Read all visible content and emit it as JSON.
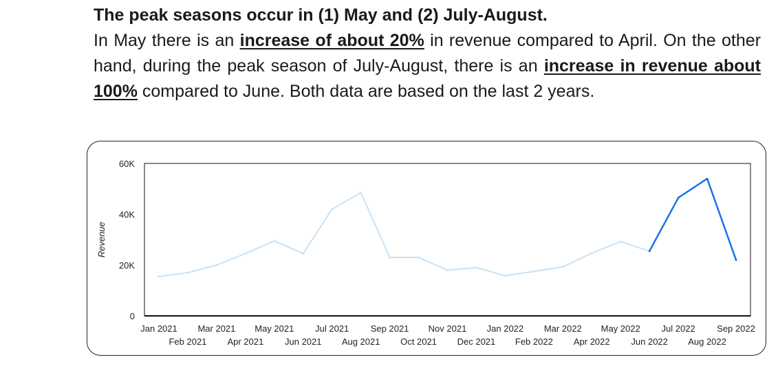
{
  "insight": {
    "headline": "The peak seasons occur in (1) May and (2) July-August.",
    "p1_a": "In May there is an ",
    "p1_b": "increase of about 20%",
    "p1_c": " in revenue compared to April. On the other hand, during the peak season of July-August, there is an ",
    "p1_d": "increase in revenue about 100%",
    "p1_e": " compared to June. Both data are based on the last 2 years."
  },
  "chart_data": {
    "type": "line",
    "x": [
      "Jan 2021",
      "Feb 2021",
      "Mar 2021",
      "Apr 2021",
      "May 2021",
      "Jun 2021",
      "Jul 2021",
      "Aug 2021",
      "Sep 2021",
      "Oct 2021",
      "Nov 2021",
      "Dec 2021",
      "Jan 2022",
      "Feb 2022",
      "Mar 2022",
      "Apr 2022",
      "May 2022",
      "Jun 2022",
      "Jul 2022",
      "Aug 2022",
      "Sep 2022"
    ],
    "series": [
      {
        "values": [
          15500,
          17000,
          20000,
          24500,
          29500,
          24500,
          42000,
          48500,
          23000,
          23000,
          18000,
          19000,
          15800,
          17500,
          19300,
          24700,
          29200,
          25500,
          46500,
          54000,
          22000
        ],
        "highlight_from_index": 17,
        "color_muted": "#c9e2f5",
        "color_highlight": "#1a73e8"
      }
    ],
    "xlabel": "",
    "ylabel": "Revenue",
    "yticks": [
      "0",
      "20K",
      "40K",
      "60K"
    ],
    "ytick_values": [
      0,
      20000,
      40000,
      60000
    ],
    "ylim": [
      0,
      60000
    ],
    "grid": false
  }
}
